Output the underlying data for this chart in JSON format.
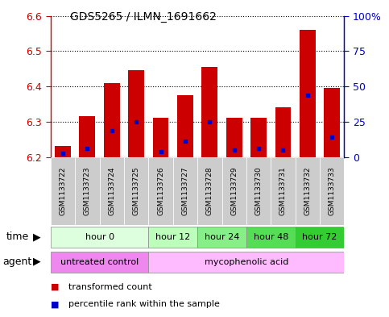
{
  "title": "GDS5265 / ILMN_1691662",
  "samples": [
    "GSM1133722",
    "GSM1133723",
    "GSM1133724",
    "GSM1133725",
    "GSM1133726",
    "GSM1133727",
    "GSM1133728",
    "GSM1133729",
    "GSM1133730",
    "GSM1133731",
    "GSM1133732",
    "GSM1133733"
  ],
  "bar_base": 6.2,
  "bar_tops": [
    6.23,
    6.315,
    6.41,
    6.445,
    6.31,
    6.375,
    6.455,
    6.31,
    6.31,
    6.34,
    6.56,
    6.395
  ],
  "percentile_values": [
    6.21,
    6.225,
    6.275,
    6.3,
    6.215,
    6.245,
    6.3,
    6.22,
    6.225,
    6.22,
    6.375,
    6.255
  ],
  "ylim": [
    6.2,
    6.6
  ],
  "yticks_left": [
    6.2,
    6.3,
    6.4,
    6.5,
    6.6
  ],
  "yticks_right_vals": [
    0,
    25,
    50,
    75,
    100
  ],
  "yticks_right_pos": [
    6.2,
    6.3,
    6.4,
    6.5,
    6.6
  ],
  "bar_color": "#cc0000",
  "percentile_color": "#0000cc",
  "time_groups": [
    {
      "label": "hour 0",
      "start": 0,
      "end": 4,
      "color": "#ddffdd"
    },
    {
      "label": "hour 12",
      "start": 4,
      "end": 6,
      "color": "#bbffbb"
    },
    {
      "label": "hour 24",
      "start": 6,
      "end": 8,
      "color": "#88ee88"
    },
    {
      "label": "hour 48",
      "start": 8,
      "end": 10,
      "color": "#55dd55"
    },
    {
      "label": "hour 72",
      "start": 10,
      "end": 12,
      "color": "#33cc33"
    }
  ],
  "agent_groups": [
    {
      "label": "untreated control",
      "start": 0,
      "end": 4,
      "color": "#ee88ee"
    },
    {
      "label": "mycophenolic acid",
      "start": 4,
      "end": 12,
      "color": "#ffbbff"
    }
  ],
  "legend_items": [
    {
      "label": "transformed count",
      "color": "#cc0000"
    },
    {
      "label": "percentile rank within the sample",
      "color": "#0000cc"
    }
  ],
  "grid_color": "#000000",
  "plot_bg": "#ffffff",
  "fig_bg": "#ffffff",
  "bar_width": 0.65,
  "left_color": "#cc0000",
  "right_color": "#0000cc",
  "sample_box_color": "#cccccc",
  "border_color": "#888888"
}
